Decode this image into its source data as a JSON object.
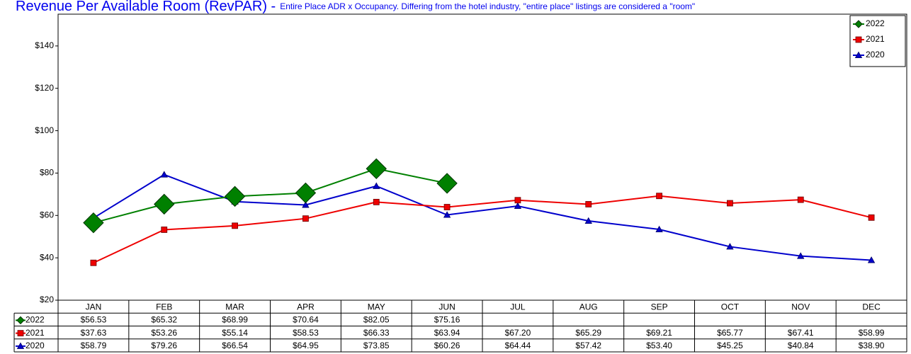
{
  "chart_data": {
    "type": "line",
    "title": "Revenue Per Available Room (RevPAR) -",
    "subtitle": "Entire Place ADR x Occupancy. Differing from the hotel industry, \"entire place\" listings are considered a \"room\"",
    "categories": [
      "JAN",
      "FEB",
      "MAR",
      "APR",
      "MAY",
      "JUN",
      "JUL",
      "AUG",
      "SEP",
      "OCT",
      "NOV",
      "DEC"
    ],
    "series": [
      {
        "name": "2022",
        "color": "#008000",
        "marker": "diamond",
        "values": [
          56.53,
          65.32,
          68.99,
          70.64,
          82.05,
          75.16,
          null,
          null,
          null,
          null,
          null,
          null
        ],
        "value_labels": [
          "$56.53",
          "$65.32",
          "$68.99",
          "$70.64",
          "$82.05",
          "$75.16",
          null,
          null,
          null,
          null,
          null,
          null
        ]
      },
      {
        "name": "2021",
        "color": "#ee0000",
        "marker": "square",
        "values": [
          37.63,
          53.26,
          55.14,
          58.53,
          66.33,
          63.94,
          67.2,
          65.29,
          69.21,
          65.77,
          67.41,
          58.99
        ],
        "value_labels": [
          "$37.63",
          "$53.26",
          "$55.14",
          "$58.53",
          "$66.33",
          "$63.94",
          "$67.20",
          "$65.29",
          "$69.21",
          "$65.77",
          "$67.41",
          "$58.99"
        ]
      },
      {
        "name": "2020",
        "color": "#0000cc",
        "marker": "triangle",
        "values": [
          58.79,
          79.26,
          66.54,
          64.95,
          73.85,
          60.26,
          64.44,
          57.42,
          53.4,
          45.25,
          40.84,
          38.9
        ],
        "value_labels": [
          "$58.79",
          "$79.26",
          "$66.54",
          "$64.95",
          "$73.85",
          "$60.26",
          "$64.44",
          "$57.42",
          "$53.40",
          "$45.25",
          "$40.84",
          "$38.90"
        ]
      }
    ],
    "ylim": [
      20,
      155
    ],
    "yticks": [
      {
        "value": 20,
        "label": "$20"
      },
      {
        "value": 40,
        "label": "$40"
      },
      {
        "value": 60,
        "label": "$60"
      },
      {
        "value": 80,
        "label": "$80"
      },
      {
        "value": 100,
        "label": "$100"
      },
      {
        "value": 120,
        "label": "$120"
      },
      {
        "value": 140,
        "label": "$140"
      }
    ],
    "legend": "top-right",
    "grid": false
  }
}
